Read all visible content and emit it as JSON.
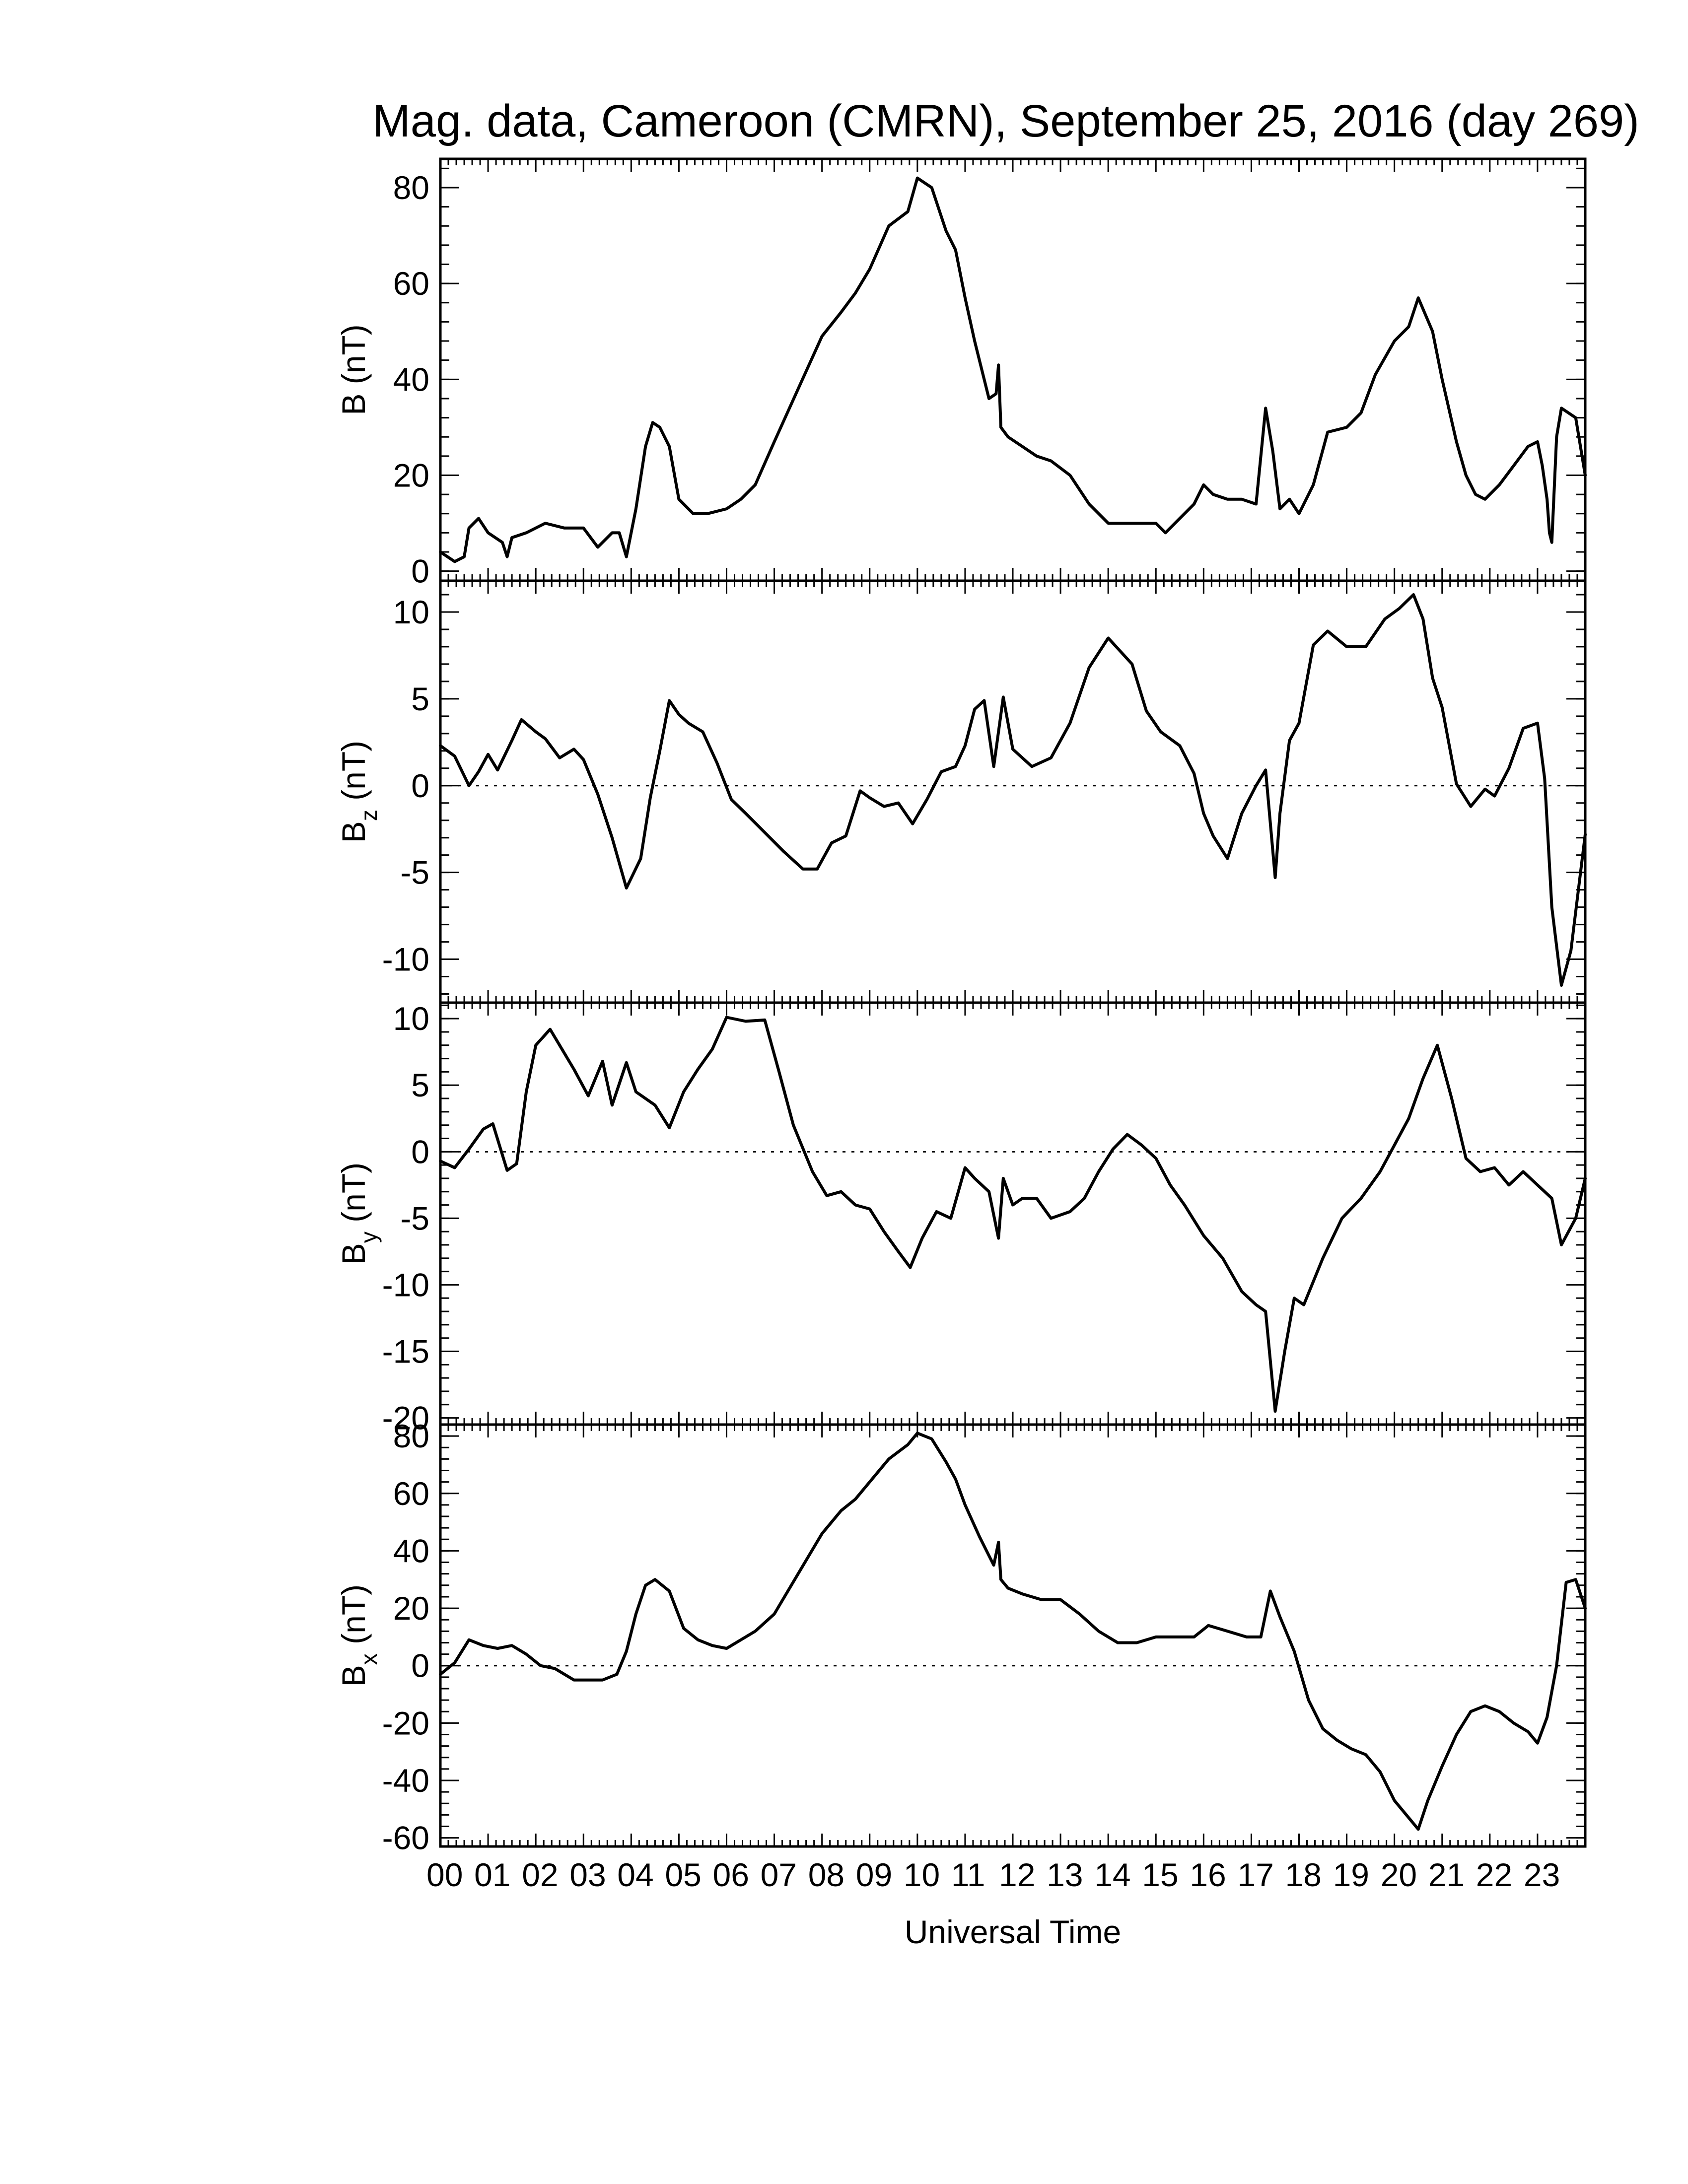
{
  "title": "Mag. data, Cameroon (CMRN), September 25, 2016 (day 269)",
  "xlabel": "Universal Time",
  "chart_data": [
    {
      "type": "line",
      "id": "B",
      "ylabel": "B (nT)",
      "ylabel_main": "B (nT)",
      "ylabel_sub": "",
      "ylim": [
        -2,
        86
      ],
      "yticks": [
        0,
        20,
        40,
        60,
        80
      ],
      "zero_line": false,
      "x_unit": "hours UT",
      "x": [
        0.0,
        0.3,
        0.5,
        0.6,
        0.8,
        1.0,
        1.3,
        1.4,
        1.5,
        1.8,
        2.2,
        2.6,
        3.0,
        3.3,
        3.6,
        3.75,
        3.9,
        4.1,
        4.3,
        4.45,
        4.6,
        4.8,
        5.0,
        5.3,
        5.6,
        6.0,
        6.3,
        6.6,
        7.0,
        7.5,
        8.0,
        8.4,
        8.7,
        9.0,
        9.4,
        9.8,
        10.0,
        10.3,
        10.6,
        10.8,
        11.0,
        11.2,
        11.5,
        11.65,
        11.7,
        11.75,
        11.9,
        12.2,
        12.5,
        12.8,
        13.2,
        13.6,
        14.0,
        14.5,
        15.0,
        15.2,
        15.5,
        15.8,
        16.0,
        16.2,
        16.5,
        16.8,
        17.1,
        17.3,
        17.45,
        17.6,
        17.8,
        18.0,
        18.3,
        18.6,
        19.0,
        19.3,
        19.6,
        20.0,
        20.3,
        20.5,
        20.8,
        21.0,
        21.3,
        21.5,
        21.7,
        21.9,
        22.2,
        22.5,
        22.8,
        23.0,
        23.1,
        23.2,
        23.25,
        23.3,
        23.4,
        23.5,
        23.8,
        24.0
      ],
      "values": [
        4,
        2,
        3,
        9,
        11,
        8,
        6,
        3,
        7,
        8,
        10,
        9,
        9,
        5,
        8,
        8,
        3,
        13,
        26,
        31,
        30,
        26,
        15,
        12,
        12,
        13,
        15,
        18,
        27,
        38,
        49,
        54,
        58,
        63,
        72,
        75,
        82,
        80,
        71,
        67,
        57,
        48,
        36,
        37,
        43,
        30,
        28,
        26,
        24,
        23,
        20,
        14,
        10,
        10,
        10,
        8,
        11,
        14,
        18,
        16,
        15,
        15,
        14,
        34,
        25,
        13,
        15,
        12,
        18,
        29,
        30,
        33,
        41,
        48,
        51,
        57,
        50,
        40,
        27,
        20,
        16,
        15,
        18,
        22,
        26,
        27,
        22,
        15,
        8,
        6,
        28,
        34,
        32,
        20
      ]
    },
    {
      "type": "line",
      "id": "Bz",
      "ylabel": "Bz (nT)",
      "ylabel_main": "B",
      "ylabel_sub": "z",
      "ylabel_unit": " (nT)",
      "ylim": [
        -12.5,
        11.8
      ],
      "yticks": [
        10,
        5,
        0,
        -5,
        -10
      ],
      "ytick_labels": [
        "10",
        "5",
        "0",
        "-5",
        "-10"
      ],
      "zero_line": true,
      "x_unit": "hours UT",
      "x": [
        0.0,
        0.3,
        0.6,
        0.8,
        1.0,
        1.2,
        1.5,
        1.7,
        2.0,
        2.2,
        2.5,
        2.8,
        3.0,
        3.3,
        3.6,
        3.9,
        4.2,
        4.4,
        4.6,
        4.8,
        5.0,
        5.2,
        5.5,
        5.8,
        6.1,
        6.4,
        6.8,
        7.2,
        7.6,
        7.9,
        8.2,
        8.5,
        8.8,
        9.0,
        9.3,
        9.6,
        9.9,
        10.2,
        10.5,
        10.8,
        11.0,
        11.2,
        11.4,
        11.6,
        11.8,
        12.0,
        12.4,
        12.8,
        13.2,
        13.6,
        14.0,
        14.5,
        14.8,
        15.1,
        15.5,
        15.8,
        16.0,
        16.2,
        16.5,
        16.8,
        17.1,
        17.3,
        17.5,
        17.6,
        17.8,
        18.0,
        18.3,
        18.6,
        19.0,
        19.4,
        19.8,
        20.1,
        20.4,
        20.6,
        20.8,
        21.0,
        21.3,
        21.6,
        21.9,
        22.1,
        22.4,
        22.7,
        23.0,
        23.15,
        23.3,
        23.5,
        23.7,
        24.0
      ],
      "values": [
        2.3,
        1.7,
        0.0,
        0.8,
        1.8,
        0.9,
        2.6,
        3.8,
        3.1,
        2.7,
        1.6,
        2.1,
        1.5,
        -0.5,
        -3.0,
        -5.9,
        -4.2,
        -0.7,
        2.0,
        4.9,
        4.1,
        3.6,
        3.1,
        1.3,
        -0.8,
        -1.6,
        -2.7,
        -3.8,
        -4.8,
        -4.8,
        -3.3,
        -2.9,
        -0.3,
        -0.7,
        -1.2,
        -1.0,
        -2.2,
        -0.8,
        0.8,
        1.1,
        2.3,
        4.4,
        4.9,
        1.1,
        5.1,
        2.1,
        1.1,
        1.6,
        3.6,
        6.8,
        8.5,
        7.0,
        4.3,
        3.1,
        2.3,
        0.7,
        -1.6,
        -2.9,
        -4.2,
        -1.6,
        0.0,
        0.9,
        -5.3,
        -1.6,
        2.6,
        3.6,
        8.1,
        8.9,
        8.0,
        8.0,
        9.6,
        10.2,
        11.0,
        9.6,
        6.2,
        4.5,
        0.1,
        -1.2,
        -0.2,
        -0.6,
        1.0,
        3.3,
        3.6,
        0.4,
        -7.0,
        -11.5,
        -9.5,
        -2.8
      ]
    },
    {
      "type": "line",
      "id": "By",
      "ylabel": "By (nT)",
      "ylabel_main": "B",
      "ylabel_sub": "y",
      "ylabel_unit": " (nT)",
      "ylim": [
        -20.5,
        11.2
      ],
      "yticks": [
        10,
        5,
        0,
        -5,
        -10,
        -15,
        -20
      ],
      "ytick_labels": [
        "10",
        "5",
        "0",
        "-5",
        "-10",
        "-15",
        "-20"
      ],
      "zero_line": true,
      "x_unit": "hours UT",
      "x": [
        0.0,
        0.3,
        0.6,
        0.9,
        1.1,
        1.4,
        1.6,
        1.8,
        2.0,
        2.3,
        2.5,
        2.8,
        3.1,
        3.4,
        3.6,
        3.9,
        4.1,
        4.5,
        4.8,
        5.1,
        5.4,
        5.7,
        6.0,
        6.4,
        6.8,
        7.1,
        7.4,
        7.8,
        8.1,
        8.4,
        8.7,
        9.0,
        9.3,
        9.6,
        9.85,
        10.1,
        10.4,
        10.7,
        11.0,
        11.2,
        11.5,
        11.7,
        11.8,
        12.0,
        12.2,
        12.5,
        12.8,
        13.2,
        13.5,
        13.8,
        14.1,
        14.4,
        14.7,
        15.0,
        15.3,
        15.6,
        16.0,
        16.4,
        16.8,
        17.1,
        17.3,
        17.5,
        17.7,
        17.9,
        18.1,
        18.5,
        18.9,
        19.3,
        19.7,
        20.0,
        20.3,
        20.6,
        20.9,
        21.2,
        21.5,
        21.8,
        22.1,
        22.4,
        22.7,
        23.0,
        23.3,
        23.5,
        23.8,
        24.0
      ],
      "values": [
        -0.7,
        -1.2,
        0.2,
        1.7,
        2.1,
        -1.4,
        -0.9,
        4.5,
        8.0,
        9.2,
        8.0,
        6.2,
        4.2,
        6.8,
        3.5,
        6.7,
        4.5,
        3.5,
        1.8,
        4.5,
        6.2,
        7.7,
        10.1,
        9.8,
        9.9,
        6.0,
        2.0,
        -1.5,
        -3.3,
        -3.0,
        -4.0,
        -4.3,
        -6.0,
        -7.5,
        -8.7,
        -6.5,
        -4.5,
        -5.0,
        -1.2,
        -2.0,
        -3.0,
        -6.5,
        -2.0,
        -4.0,
        -3.5,
        -3.5,
        -5.0,
        -4.5,
        -3.5,
        -1.5,
        0.2,
        1.3,
        0.5,
        -0.5,
        -2.5,
        -4.0,
        -6.3,
        -8.0,
        -10.5,
        -11.5,
        -12.0,
        -19.5,
        -15.0,
        -11.0,
        -11.5,
        -8.0,
        -5.0,
        -3.5,
        -1.5,
        0.5,
        2.5,
        5.5,
        8.0,
        4.0,
        -0.5,
        -1.5,
        -1.2,
        -2.5,
        -1.5,
        -2.5,
        -3.5,
        -7.0,
        -5.0,
        -2.0
      ]
    },
    {
      "type": "line",
      "id": "Bx",
      "ylabel": "Bx (nT)",
      "ylabel_main": "B",
      "ylabel_sub": "x",
      "ylabel_unit": " (nT)",
      "ylim": [
        -63,
        84
      ],
      "yticks": [
        80,
        60,
        40,
        20,
        0,
        -20,
        -40,
        -60
      ],
      "ytick_labels": [
        "80",
        "60",
        "40",
        "20",
        "0",
        "-20",
        "-40",
        "-60"
      ],
      "zero_line": true,
      "x_unit": "hours UT",
      "x": [
        0.0,
        0.3,
        0.6,
        0.9,
        1.2,
        1.5,
        1.8,
        2.1,
        2.4,
        2.8,
        3.1,
        3.4,
        3.7,
        3.9,
        4.1,
        4.3,
        4.5,
        4.8,
        5.1,
        5.4,
        5.7,
        6.0,
        6.3,
        6.6,
        7.0,
        7.5,
        8.0,
        8.4,
        8.7,
        9.0,
        9.4,
        9.8,
        10.0,
        10.3,
        10.6,
        10.8,
        11.0,
        11.3,
        11.6,
        11.7,
        11.75,
        11.9,
        12.2,
        12.6,
        13.0,
        13.4,
        13.8,
        14.2,
        14.6,
        15.0,
        15.4,
        15.8,
        16.1,
        16.5,
        16.9,
        17.2,
        17.4,
        17.6,
        17.9,
        18.2,
        18.5,
        18.8,
        19.1,
        19.4,
        19.7,
        20.0,
        20.3,
        20.5,
        20.7,
        21.0,
        21.3,
        21.6,
        21.9,
        22.2,
        22.5,
        22.8,
        23.0,
        23.2,
        23.4,
        23.6,
        23.8,
        24.0
      ],
      "values": [
        -3,
        1,
        9,
        7,
        6,
        7,
        4,
        0,
        -1,
        -5,
        -5,
        -5,
        -3,
        5,
        18,
        28,
        30,
        26,
        13,
        9,
        7,
        6,
        9,
        12,
        18,
        32,
        46,
        54,
        58,
        64,
        72,
        77,
        81,
        79,
        71,
        65,
        56,
        45,
        35,
        43,
        30,
        27,
        25,
        23,
        23,
        18,
        12,
        8,
        8,
        10,
        10,
        10,
        14,
        12,
        10,
        10,
        26,
        17,
        5,
        -12,
        -22,
        -26,
        -29,
        -31,
        -37,
        -47,
        -53,
        -57,
        -47,
        -35,
        -24,
        -16,
        -14,
        -16,
        -20,
        -23,
        -27,
        -18,
        0,
        29,
        30,
        20
      ]
    }
  ],
  "x_axis": {
    "xlim": [
      0,
      24
    ],
    "tick_labels": [
      "00",
      "01",
      "02",
      "03",
      "04",
      "05",
      "06",
      "07",
      "08",
      "09",
      "10",
      "11",
      "12",
      "13",
      "14",
      "15",
      "16",
      "17",
      "18",
      "19",
      "20",
      "21",
      "22",
      "23"
    ]
  }
}
